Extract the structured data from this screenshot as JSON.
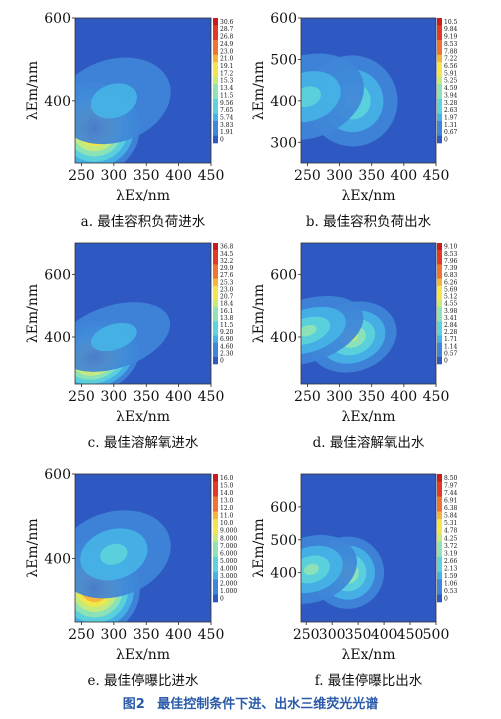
{
  "figure": {
    "number": "图2",
    "title": "最佳控制条件下进、出水三维荧光光谱"
  },
  "colors": {
    "scale": [
      "#2e59c2",
      "#3f86d8",
      "#45b3e6",
      "#5dd3dc",
      "#8fe3b4",
      "#c8ea7a",
      "#f2e64a",
      "#f7b43a",
      "#f0742f",
      "#e23a25",
      "#c91c1c"
    ],
    "background": "#2e59c2",
    "caption": "#2a5aa8"
  },
  "chart_data": [
    {
      "id": "a",
      "type": "heatmap",
      "caption": "a. 最佳容积负荷进水",
      "xlabel": "λEx/nm",
      "ylabel": "λEm/nm",
      "xlim": [
        240,
        450
      ],
      "ylim": [
        250,
        600
      ],
      "xticks": [
        250,
        300,
        350,
        400,
        450
      ],
      "yticks": [
        400,
        600
      ],
      "colorbar_ticks": [
        "30.6",
        "28.7",
        "26.8",
        "24.9",
        "23.0",
        "21.0",
        "19.1",
        "17.2",
        "15.3",
        "13.4",
        "11.5",
        "9.56",
        "7.65",
        "5.74",
        "3.83",
        "1.91",
        "0"
      ],
      "peaks": [
        {
          "ex": 270,
          "em": 335,
          "intensity": 30.6
        },
        {
          "ex": 300,
          "em": 400,
          "intensity": 6
        }
      ]
    },
    {
      "id": "b",
      "type": "heatmap",
      "caption": "b. 最佳容积负荷出水",
      "xlabel": "λEx/nm",
      "ylabel": "λEm/nm",
      "xlim": [
        240,
        450
      ],
      "ylim": [
        250,
        600
      ],
      "xticks": [
        250,
        300,
        350,
        400,
        450
      ],
      "yticks": [
        300,
        400,
        500,
        600
      ],
      "colorbar_ticks": [
        "10.5",
        "9.84",
        "9.19",
        "8.53",
        "7.88",
        "7.22",
        "6.56",
        "5.91",
        "5.25",
        "4.59",
        "3.94",
        "3.28",
        "2.63",
        "1.97",
        "1.31",
        "0.67",
        "0"
      ],
      "peaks": [
        {
          "ex": 320,
          "em": 400,
          "intensity": 4.6
        },
        {
          "ex": 250,
          "em": 410,
          "intensity": 3.5
        }
      ]
    },
    {
      "id": "c",
      "type": "heatmap",
      "caption": "c. 最佳溶解氧进水",
      "xlabel": "λEx/nm",
      "ylabel": "λEm/nm",
      "xlim": [
        240,
        450
      ],
      "ylim": [
        250,
        700
      ],
      "xticks": [
        250,
        300,
        350,
        400,
        450
      ],
      "yticks": [
        400,
        600
      ],
      "colorbar_ticks": [
        "36.8",
        "34.5",
        "32.2",
        "29.9",
        "27.6",
        "25.3",
        "23.0",
        "20.7",
        "18.4",
        "16.1",
        "13.8",
        "11.5",
        "9.20",
        "6.90",
        "4.60",
        "2.30",
        "0"
      ],
      "peaks": [
        {
          "ex": 270,
          "em": 335,
          "intensity": 36.8
        },
        {
          "ex": 300,
          "em": 400,
          "intensity": 7
        }
      ]
    },
    {
      "id": "d",
      "type": "heatmap",
      "caption": "d. 最佳溶解氧出水",
      "xlabel": "λEx/nm",
      "ylabel": "λEm/nm",
      "xlim": [
        240,
        450
      ],
      "ylim": [
        250,
        700
      ],
      "xticks": [
        250,
        300,
        350,
        400,
        450
      ],
      "yticks": [
        400,
        600
      ],
      "colorbar_ticks": [
        "9.10",
        "8.53",
        "7.96",
        "7.39",
        "6.83",
        "6.26",
        "5.69",
        "5.12",
        "4.55",
        "3.98",
        "3.41",
        "2.84",
        "2.28",
        "1.71",
        "1.14",
        "0.57",
        "0"
      ],
      "peaks": [
        {
          "ex": 320,
          "em": 400,
          "intensity": 4.5
        },
        {
          "ex": 250,
          "em": 420,
          "intensity": 3.8
        }
      ]
    },
    {
      "id": "e",
      "type": "heatmap",
      "caption": "e. 最佳停曝比进水",
      "xlabel": "λEx/nm",
      "ylabel": "λEm/nm",
      "xlim": [
        240,
        450
      ],
      "ylim": [
        250,
        600
      ],
      "xticks": [
        250,
        300,
        350,
        400,
        450
      ],
      "yticks": [
        400,
        600
      ],
      "colorbar_ticks": [
        "16.0",
        "15.0",
        "14.0",
        "13.0",
        "12.0",
        "11.0",
        "10.0",
        "9.000",
        "8.000",
        "7.000",
        "6.000",
        "5.000",
        "4.000",
        "3.000",
        "2.000",
        "1.000",
        "0"
      ],
      "peaks": [
        {
          "ex": 270,
          "em": 330,
          "intensity": 16.0
        },
        {
          "ex": 300,
          "em": 410,
          "intensity": 5
        }
      ]
    },
    {
      "id": "f",
      "type": "heatmap",
      "caption": "f. 最佳停曝比出水",
      "xlabel": "λEx/nm",
      "ylabel": "λEm/nm",
      "xlim": [
        240,
        500
      ],
      "ylim": [
        250,
        700
      ],
      "xticks": [
        250,
        300,
        350,
        400,
        450,
        500
      ],
      "yticks": [
        400,
        500,
        600
      ],
      "colorbar_ticks": [
        "8.50",
        "7.97",
        "7.44",
        "6.91",
        "6.38",
        "5.84",
        "5.31",
        "4.78",
        "4.25",
        "3.72",
        "3.19",
        "2.66",
        "2.13",
        "1.59",
        "1.06",
        "0.53",
        "0"
      ],
      "peaks": [
        {
          "ex": 330,
          "em": 400,
          "intensity": 4.4
        },
        {
          "ex": 260,
          "em": 410,
          "intensity": 3.2
        }
      ]
    }
  ]
}
